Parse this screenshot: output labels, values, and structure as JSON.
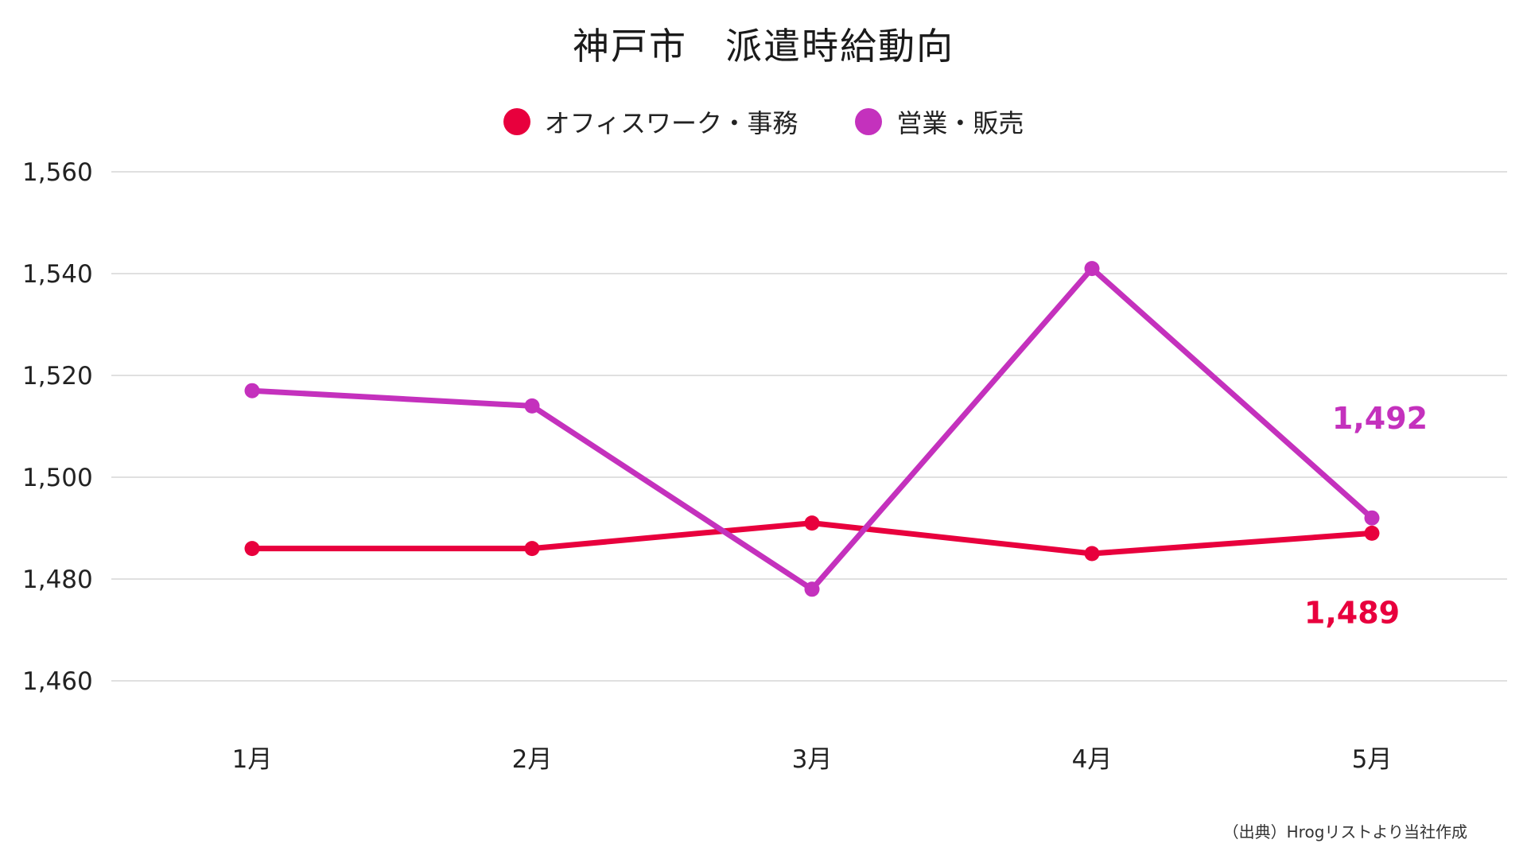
{
  "chart_data": {
    "type": "line",
    "title": "神戸市　派遣時給動向",
    "categories": [
      "1月",
      "2月",
      "3月",
      "4月",
      "5月"
    ],
    "y_ticks": [
      "1,460",
      "1,480",
      "1,500",
      "1,520",
      "1,540",
      "1,560"
    ],
    "ylim": [
      1460,
      1560
    ],
    "grid": true,
    "legend_position": "top-center",
    "series": [
      {
        "name": "オフィスワーク・事務",
        "color": "#e8003d",
        "values": [
          1486,
          1486,
          1491,
          1485,
          1489
        ],
        "end_label": "1,489"
      },
      {
        "name": "営業・販売",
        "color": "#c431bd",
        "values": [
          1517,
          1514,
          1478,
          1541,
          1492
        ],
        "end_label": "1,492"
      }
    ]
  },
  "source": "（出典）Hrogリストより当社作成"
}
